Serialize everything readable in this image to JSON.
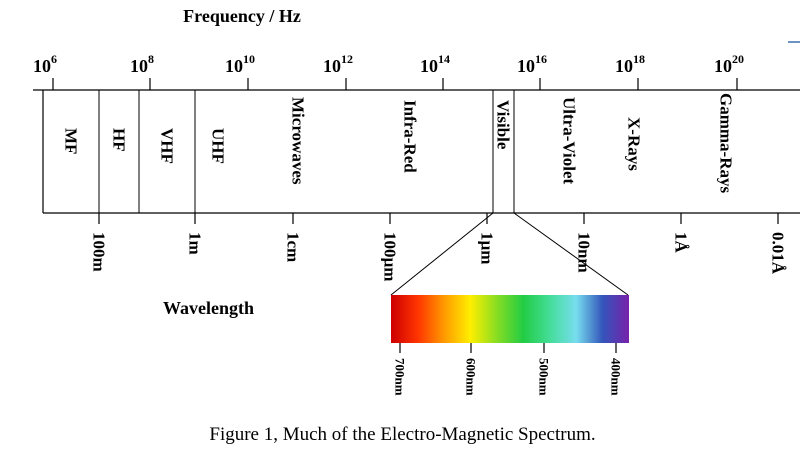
{
  "title": "Frequency / Hz",
  "wavelength_label": "Wavelength",
  "caption": "Figure 1,   Much of the Electro-Magnetic  Spectrum.",
  "frequency_ticks": [
    {
      "base": "10",
      "exp": "6"
    },
    {
      "base": "10",
      "exp": "8"
    },
    {
      "base": "10",
      "exp": "10"
    },
    {
      "base": "10",
      "exp": "12"
    },
    {
      "base": "10",
      "exp": "14"
    },
    {
      "base": "10",
      "exp": "16"
    },
    {
      "base": "10",
      "exp": "18"
    },
    {
      "base": "10",
      "exp": "20"
    }
  ],
  "bands": [
    "MF",
    "HF",
    "VHF",
    "UHF",
    "Microwaves",
    "Infra-Red",
    "Visible",
    "Ultra-Violet",
    "X-Rays",
    "Gamma-Rays"
  ],
  "wavelength_ticks": [
    "100m",
    "1m",
    "1cm",
    "100µm",
    "1µm",
    "10nm",
    "1Å",
    "0.01Å"
  ],
  "visible_ticks": [
    "700nm",
    "600nm",
    "500nm",
    "400nm"
  ],
  "colors": {
    "line": "#000000",
    "visible_gradient": [
      "#cc0000",
      "#ff3300",
      "#ff9900",
      "#ffee00",
      "#88dd22",
      "#22cc44",
      "#44dd99",
      "#77ddee",
      "#3355bb",
      "#7722aa"
    ]
  }
}
